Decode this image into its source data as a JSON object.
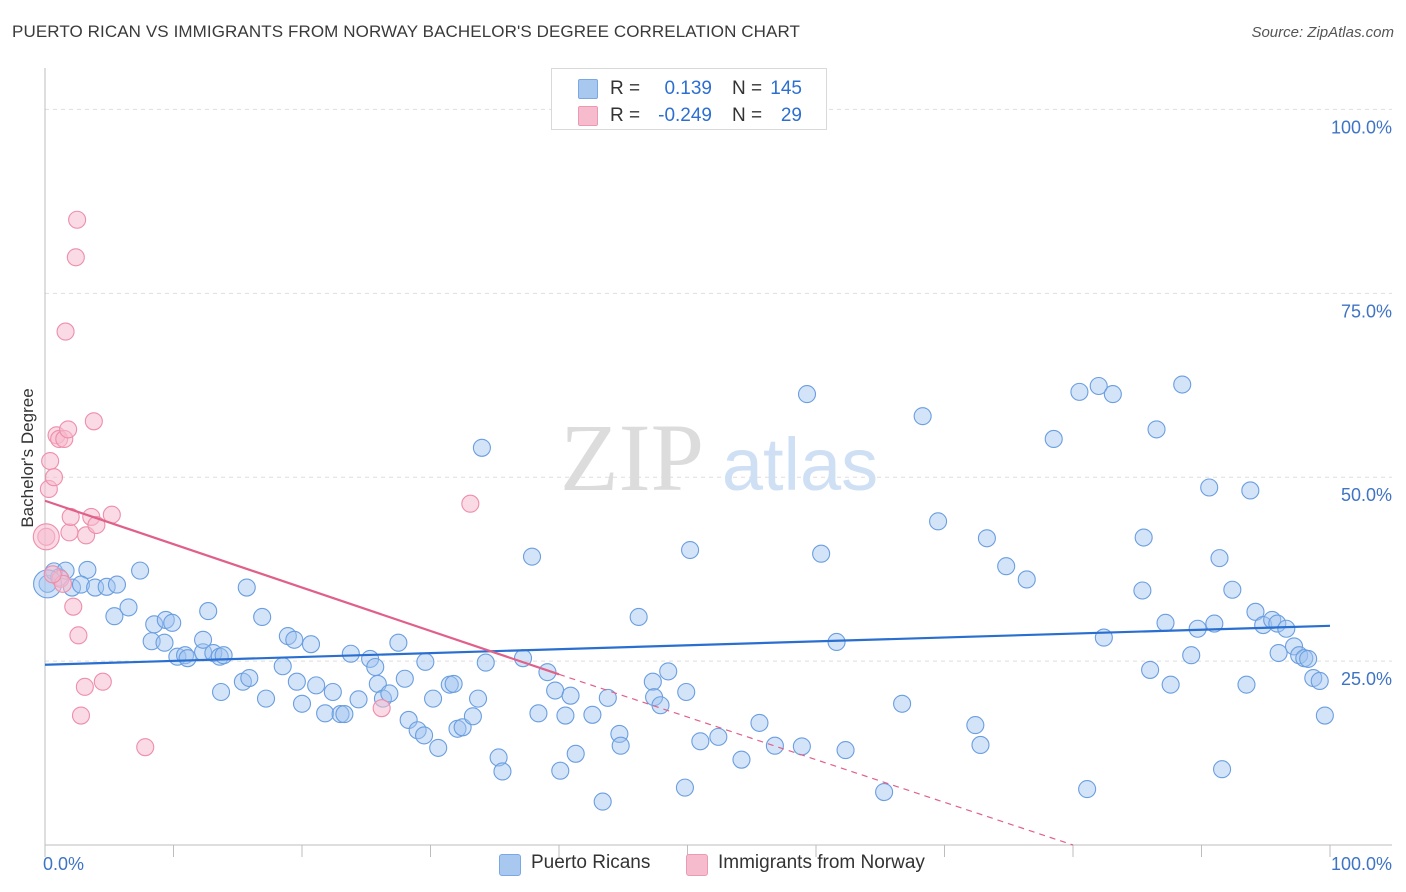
{
  "title": "PUERTO RICAN VS IMMIGRANTS FROM NORWAY BACHELOR'S DEGREE CORRELATION CHART",
  "source": "Source: ZipAtlas.com",
  "watermark": {
    "zip": "ZIP",
    "atlas": "atlas"
  },
  "legend_top": [
    {
      "r_label": "R =",
      "r_value": "0.139",
      "n_label": "N =",
      "n_value": "145",
      "color": "#a9c8f0"
    },
    {
      "r_label": "R =",
      "r_value": "-0.249",
      "n_label": "N =",
      "n_value": "29",
      "color": "#f6bccd"
    }
  ],
  "legend_bottom": [
    {
      "label": "Puerto Ricans",
      "color": "#a9c8f0"
    },
    {
      "label": "Immigrants from Norway",
      "color": "#f6bccd"
    }
  ],
  "chart_data": {
    "type": "scatter",
    "ylabel": "Bachelor's Degree",
    "xlabel": "",
    "x_tick_labels": [
      "0.0%",
      "100.0%"
    ],
    "y_tick_labels": [
      "25.0%",
      "50.0%",
      "75.0%",
      "100.0%"
    ],
    "xlim": [
      0,
      100
    ],
    "ylim": [
      0,
      100
    ],
    "grid": true,
    "colors": {
      "puerto_ricans": "#6a9ee0",
      "puerto_ricans_fill": "rgba(160,196,240,0.45)",
      "norway": "#ee8eab",
      "norway_fill": "rgba(246,188,205,0.55)",
      "trend_blue": "#2a6fd0",
      "trend_pink": "#e0608a",
      "tick_label": "#3f74c4"
    },
    "series": [
      {
        "name": "Puerto Ricans",
        "trend": {
          "x": [
            0,
            100
          ],
          "y": [
            24.5,
            29.8
          ]
        },
        "points": [
          [
            0.2,
            35.5
          ],
          [
            0.7,
            37.2
          ],
          [
            1.1,
            36.4
          ],
          [
            1.6,
            37.3
          ],
          [
            2.1,
            35.0
          ],
          [
            3.3,
            37.4
          ],
          [
            2.8,
            35.4
          ],
          [
            3.9,
            35.0
          ],
          [
            4.8,
            35.1
          ],
          [
            5.6,
            35.4
          ],
          [
            7.4,
            37.3
          ],
          [
            5.4,
            31.1
          ],
          [
            6.5,
            32.3
          ],
          [
            8.5,
            30.0
          ],
          [
            9.4,
            30.6
          ],
          [
            9.9,
            30.2
          ],
          [
            8.3,
            27.7
          ],
          [
            9.3,
            27.5
          ],
          [
            10.3,
            25.6
          ],
          [
            10.9,
            25.8
          ],
          [
            11.1,
            25.4
          ],
          [
            12.3,
            26.2
          ],
          [
            12.3,
            27.9
          ],
          [
            12.7,
            31.8
          ],
          [
            13.1,
            26.1
          ],
          [
            13.6,
            25.6
          ],
          [
            13.9,
            25.8
          ],
          [
            13.7,
            20.8
          ],
          [
            15.4,
            22.2
          ],
          [
            15.9,
            22.7
          ],
          [
            15.7,
            35.0
          ],
          [
            16.9,
            31.0
          ],
          [
            17.2,
            19.9
          ],
          [
            18.5,
            24.3
          ],
          [
            18.9,
            28.4
          ],
          [
            19.4,
            27.9
          ],
          [
            19.6,
            22.2
          ],
          [
            20.0,
            19.2
          ],
          [
            20.7,
            27.3
          ],
          [
            21.1,
            21.7
          ],
          [
            21.8,
            17.9
          ],
          [
            22.4,
            20.8
          ],
          [
            23.0,
            17.8
          ],
          [
            23.3,
            17.8
          ],
          [
            23.8,
            26.0
          ],
          [
            24.4,
            19.8
          ],
          [
            25.3,
            25.3
          ],
          [
            25.7,
            24.2
          ],
          [
            25.9,
            21.9
          ],
          [
            26.3,
            19.9
          ],
          [
            26.8,
            20.6
          ],
          [
            27.5,
            27.5
          ],
          [
            28.0,
            22.6
          ],
          [
            28.3,
            17.0
          ],
          [
            29.0,
            15.6
          ],
          [
            29.6,
            24.9
          ],
          [
            29.5,
            14.9
          ],
          [
            30.2,
            19.9
          ],
          [
            30.6,
            13.2
          ],
          [
            31.5,
            21.8
          ],
          [
            31.8,
            21.9
          ],
          [
            32.1,
            15.8
          ],
          [
            32.5,
            16.0
          ],
          [
            33.3,
            17.5
          ],
          [
            33.7,
            19.9
          ],
          [
            34.0,
            54.0
          ],
          [
            34.3,
            24.8
          ],
          [
            35.3,
            11.9
          ],
          [
            35.6,
            10.0
          ],
          [
            37.2,
            25.4
          ],
          [
            37.9,
            39.2
          ],
          [
            38.4,
            17.9
          ],
          [
            39.1,
            23.5
          ],
          [
            39.7,
            21.0
          ],
          [
            40.1,
            10.1
          ],
          [
            40.5,
            17.6
          ],
          [
            40.9,
            20.3
          ],
          [
            41.3,
            12.4
          ],
          [
            42.6,
            17.7
          ],
          [
            43.4,
            5.9
          ],
          [
            43.8,
            20.0
          ],
          [
            44.7,
            15.1
          ],
          [
            44.8,
            13.5
          ],
          [
            46.2,
            31.0
          ],
          [
            47.3,
            22.2
          ],
          [
            47.4,
            20.1
          ],
          [
            47.9,
            19.0
          ],
          [
            48.5,
            23.6
          ],
          [
            49.8,
            7.8
          ],
          [
            49.9,
            20.8
          ],
          [
            51.0,
            14.1
          ],
          [
            52.4,
            14.7
          ],
          [
            54.2,
            11.6
          ],
          [
            55.6,
            16.6
          ],
          [
            56.8,
            13.5
          ],
          [
            59.3,
            61.3
          ],
          [
            60.4,
            39.6
          ],
          [
            61.6,
            27.6
          ],
          [
            62.3,
            12.9
          ],
          [
            65.3,
            7.2
          ],
          [
            66.7,
            19.2
          ],
          [
            68.3,
            58.3
          ],
          [
            69.5,
            44.0
          ],
          [
            72.4,
            16.3
          ],
          [
            72.8,
            13.6
          ],
          [
            73.3,
            41.7
          ],
          [
            74.8,
            37.9
          ],
          [
            76.4,
            36.1
          ],
          [
            78.5,
            55.2
          ],
          [
            80.5,
            61.6
          ],
          [
            81.1,
            7.6
          ],
          [
            82.0,
            62.4
          ],
          [
            82.4,
            28.2
          ],
          [
            83.1,
            61.3
          ],
          [
            85.4,
            34.6
          ],
          [
            85.5,
            41.8
          ],
          [
            86.0,
            23.8
          ],
          [
            87.2,
            30.2
          ],
          [
            87.6,
            21.8
          ],
          [
            88.5,
            62.6
          ],
          [
            89.2,
            25.8
          ],
          [
            89.7,
            29.4
          ],
          [
            90.6,
            48.6
          ],
          [
            91.0,
            30.1
          ],
          [
            91.4,
            39.0
          ],
          [
            91.6,
            10.3
          ],
          [
            92.4,
            34.7
          ],
          [
            93.5,
            21.8
          ],
          [
            93.8,
            48.2
          ],
          [
            94.2,
            31.7
          ],
          [
            94.8,
            29.9
          ],
          [
            95.5,
            30.6
          ],
          [
            95.9,
            30.1
          ],
          [
            96.0,
            26.1
          ],
          [
            96.6,
            29.4
          ],
          [
            97.2,
            27.0
          ],
          [
            97.6,
            25.8
          ],
          [
            98.0,
            25.4
          ],
          [
            98.3,
            25.3
          ],
          [
            98.7,
            22.7
          ],
          [
            99.2,
            22.3
          ],
          [
            99.6,
            17.6
          ],
          [
            58.9,
            13.4
          ],
          [
            86.5,
            56.5
          ],
          [
            50.2,
            40.1
          ]
        ]
      },
      {
        "name": "Immigrants from Norway",
        "trend": {
          "x": [
            0,
            40
          ],
          "y": [
            46.8,
            23.2
          ]
        },
        "trend_ext": {
          "x": [
            40,
            80
          ],
          "y": [
            23.2,
            0
          ]
        },
        "points": [
          [
            0.1,
            41.9
          ],
          [
            0.3,
            48.4
          ],
          [
            0.4,
            52.2
          ],
          [
            0.7,
            50.0
          ],
          [
            0.9,
            55.7
          ],
          [
            1.1,
            55.2
          ],
          [
            1.2,
            36.2
          ],
          [
            1.5,
            55.2
          ],
          [
            1.4,
            35.5
          ],
          [
            1.6,
            69.8
          ],
          [
            1.8,
            56.5
          ],
          [
            1.9,
            42.5
          ],
          [
            2.0,
            44.6
          ],
          [
            2.2,
            32.4
          ],
          [
            2.4,
            79.9
          ],
          [
            2.5,
            85.0
          ],
          [
            2.6,
            28.5
          ],
          [
            2.8,
            17.6
          ],
          [
            3.1,
            21.5
          ],
          [
            3.2,
            42.1
          ],
          [
            3.6,
            44.6
          ],
          [
            3.8,
            57.6
          ],
          [
            4.0,
            43.5
          ],
          [
            4.5,
            22.2
          ],
          [
            5.2,
            44.9
          ],
          [
            7.8,
            13.3
          ],
          [
            26.2,
            18.6
          ],
          [
            33.1,
            46.4
          ],
          [
            0.6,
            36.8
          ]
        ]
      }
    ]
  }
}
